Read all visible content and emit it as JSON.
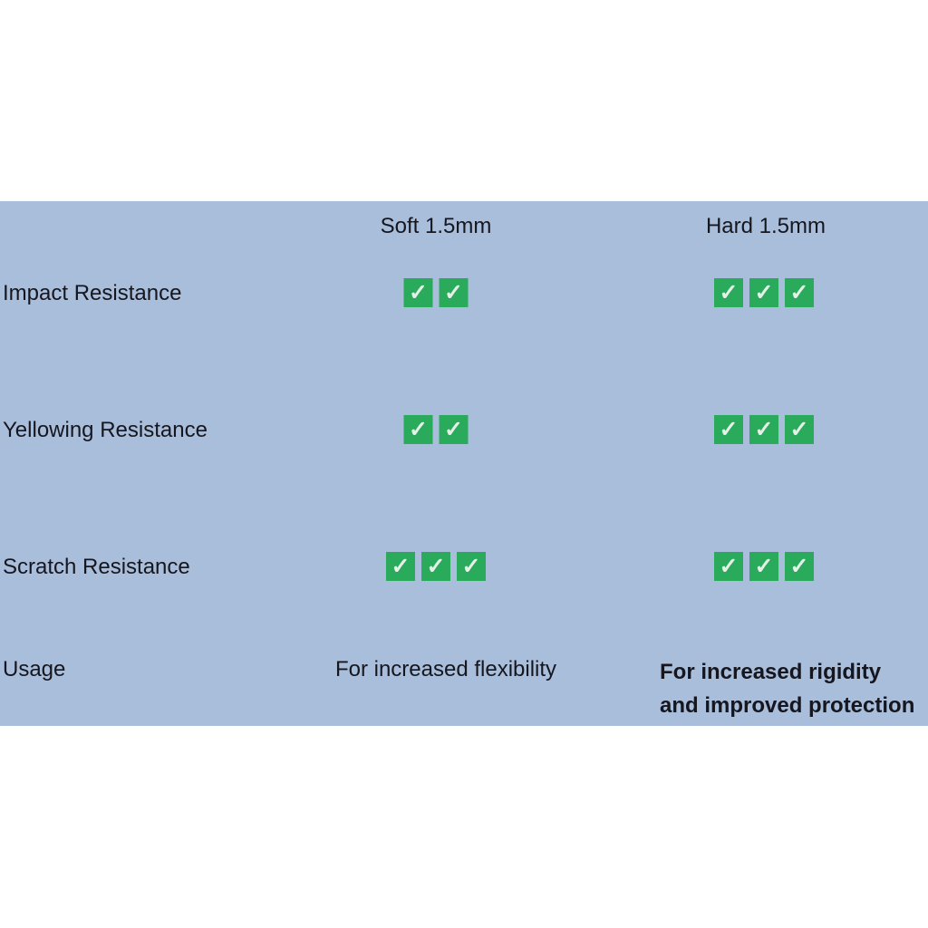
{
  "colors": {
    "panel_bg": "#a9bedb",
    "check_green": "#2aab5c",
    "check_mark": "#e5f0e8",
    "text": "#16161e"
  },
  "table": {
    "check_icon": "✓",
    "columns": [
      {
        "label": "Soft 1.5mm"
      },
      {
        "label": "Hard 1.5mm"
      }
    ],
    "rows": [
      {
        "label": "Impact Resistance",
        "soft_checks": 2,
        "hard_checks": 3
      },
      {
        "label": "Yellowing Resistance",
        "soft_checks": 2,
        "hard_checks": 3
      },
      {
        "label": "Scratch Resistance",
        "soft_checks": 3,
        "hard_checks": 3
      }
    ],
    "usage_row": {
      "label": "Usage",
      "soft_text": "For increased flexibility",
      "hard_text_line1": "For increased rigidity",
      "hard_text_line2": "and improved protection"
    }
  },
  "chart_data": {
    "type": "table",
    "title": "",
    "columns": [
      "",
      "Soft 1.5mm",
      "Hard 1.5mm"
    ],
    "rows": [
      [
        "Impact Resistance",
        2,
        3
      ],
      [
        "Yellowing Resistance",
        2,
        3
      ],
      [
        "Scratch Resistance",
        3,
        3
      ],
      [
        "Usage",
        "For increased flexibility",
        "For increased rigidity and improved protection"
      ]
    ],
    "notes": "Numeric values are green checkmark counts on a 3-point scale"
  }
}
